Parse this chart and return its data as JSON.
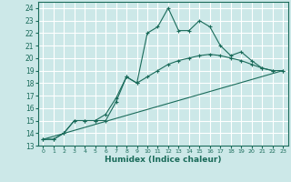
{
  "xlabel": "Humidex (Indice chaleur)",
  "bg_color": "#cce8e8",
  "grid_color": "#ffffff",
  "line_color": "#1a6b5a",
  "xlim": [
    -0.5,
    23.5
  ],
  "ylim": [
    13,
    24.5
  ],
  "yticks": [
    13,
    14,
    15,
    16,
    17,
    18,
    19,
    20,
    21,
    22,
    23,
    24
  ],
  "xticks": [
    0,
    1,
    2,
    3,
    4,
    5,
    6,
    7,
    8,
    9,
    10,
    11,
    12,
    13,
    14,
    15,
    16,
    17,
    18,
    19,
    20,
    21,
    22,
    23
  ],
  "series1_x": [
    0,
    1,
    2,
    3,
    4,
    5,
    6,
    7,
    8,
    9,
    10,
    11,
    12,
    13,
    14,
    15,
    16,
    17,
    18,
    19,
    20,
    21,
    22,
    23
  ],
  "series1_y": [
    13.5,
    13.5,
    14.0,
    15.0,
    15.0,
    15.0,
    15.0,
    16.5,
    18.5,
    18.0,
    22.0,
    22.5,
    24.0,
    22.2,
    22.2,
    23.0,
    22.5,
    21.0,
    20.2,
    20.5,
    19.8,
    19.2,
    19.0,
    19.0
  ],
  "series2_x": [
    0,
    1,
    2,
    3,
    4,
    5,
    6,
    7,
    8,
    9,
    10,
    11,
    12,
    13,
    14,
    15,
    16,
    17,
    18,
    19,
    20,
    21,
    22,
    23
  ],
  "series2_y": [
    13.5,
    13.5,
    14.0,
    15.0,
    15.0,
    15.0,
    15.5,
    16.8,
    18.5,
    18.0,
    18.5,
    19.0,
    19.5,
    19.8,
    20.0,
    20.2,
    20.3,
    20.2,
    20.0,
    19.8,
    19.5,
    19.2,
    19.0,
    19.0
  ],
  "series3_x": [
    0,
    23
  ],
  "series3_y": [
    13.5,
    19.0
  ]
}
